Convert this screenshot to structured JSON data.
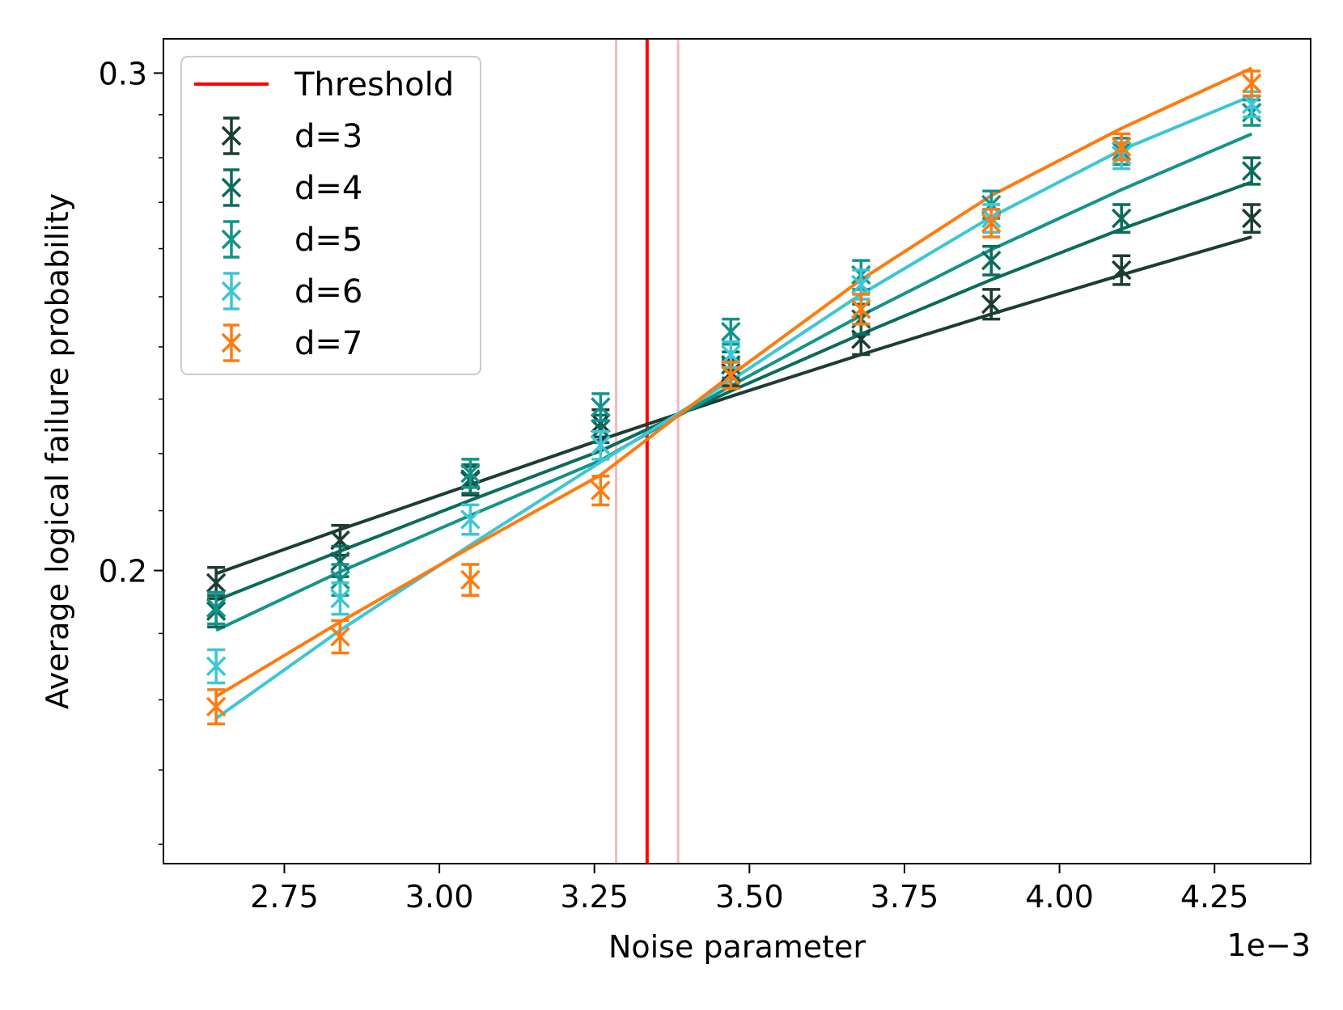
{
  "chart_data": {
    "type": "line",
    "title": "",
    "xlabel": "Noise parameter",
    "ylabel": "Average logical failure probability",
    "x_offset_label": "1e−3",
    "y_scale": "log",
    "xlim": [
      2.555,
      4.405
    ],
    "ylim": [
      0.1575,
      0.3085
    ],
    "x_ticks": [
      2.75,
      3.0,
      3.25,
      3.5,
      3.75,
      4.0,
      4.25
    ],
    "x_tick_labels": [
      "2.75",
      "3.00",
      "3.25",
      "3.50",
      "3.75",
      "4.00",
      "4.25"
    ],
    "y_ticks": [
      0.2,
      0.3
    ],
    "y_tick_labels": [
      "0.2",
      "0.3"
    ],
    "x": [
      2.64,
      2.84,
      3.05,
      3.26,
      3.47,
      3.68,
      3.89,
      4.1,
      4.31
    ],
    "threshold": {
      "label": "Threshold",
      "value": 3.335,
      "lower": 3.285,
      "upper": 3.385,
      "color": "#ff0000",
      "band_color": "#f7b8b8"
    },
    "series": [
      {
        "name": "d=3",
        "color": "#1c3d33",
        "values": [
          0.198,
          0.205,
          0.2152,
          0.2255,
          0.235,
          0.2415,
          0.2485,
          0.2555,
          0.2665
        ],
        "errors": [
          0.0025,
          0.0025,
          0.0025,
          0.0025,
          0.0025,
          0.003,
          0.003,
          0.003,
          0.003
        ],
        "fit": [
          0.1995,
          0.2068,
          0.2145,
          0.2225,
          0.2305,
          0.2385,
          0.2465,
          0.2545,
          0.2625
        ]
      },
      {
        "name": "d=4",
        "color": "#0b6b5c",
        "values": [
          0.1935,
          0.2015,
          0.2155,
          0.2245,
          0.2365,
          0.2455,
          0.2575,
          0.2665,
          0.277
        ],
        "errors": [
          0.0025,
          0.0025,
          0.0025,
          0.0025,
          0.0025,
          0.003,
          0.003,
          0.003,
          0.003
        ],
        "fit": [
          0.1952,
          0.2032,
          0.2118,
          0.2205,
          0.2315,
          0.2425,
          0.2535,
          0.2642,
          0.2745
        ]
      },
      {
        "name": "d=5",
        "color": "#13948a",
        "values": [
          0.194,
          0.1985,
          0.2165,
          0.2285,
          0.243,
          0.2545,
          0.2695,
          0.2815,
          0.2905
        ],
        "errors": [
          0.0025,
          0.0025,
          0.0025,
          0.0025,
          0.0025,
          0.003,
          0.003,
          0.003,
          0.003
        ],
        "fit": [
          0.1905,
          0.1998,
          0.2092,
          0.2188,
          0.2325,
          0.2462,
          0.2598,
          0.2728,
          0.2855
        ]
      },
      {
        "name": "d=6",
        "color": "#3dc6d6",
        "values": [
          0.185,
          0.1955,
          0.2085,
          0.2215,
          0.2385,
          0.2525,
          0.2665,
          0.2805,
          0.2925
        ],
        "errors": [
          0.0025,
          0.0025,
          0.0025,
          0.0025,
          0.0025,
          0.003,
          0.003,
          0.003,
          0.003
        ],
        "fit": [
          0.1773,
          0.1905,
          0.2042,
          0.2185,
          0.2335,
          0.2505,
          0.2668,
          0.2818,
          0.2945
        ]
      },
      {
        "name": "d=7",
        "color": "#ff7b0f",
        "values": [
          0.179,
          0.1895,
          0.1985,
          0.2135,
          0.2345,
          0.2475,
          0.2655,
          0.2825,
          0.2975
        ],
        "errors": [
          0.0025,
          0.0025,
          0.0025,
          0.0025,
          0.0025,
          0.003,
          0.003,
          0.003,
          0.003
        ],
        "fit": [
          0.1805,
          0.1918,
          0.2038,
          0.2162,
          0.2345,
          0.2535,
          0.2715,
          0.2868,
          0.3012
        ]
      }
    ],
    "legend": {
      "position": "top-left",
      "entries": [
        "Threshold",
        "d=3",
        "d=4",
        "d=5",
        "d=6",
        "d=7"
      ]
    },
    "grid": false
  }
}
